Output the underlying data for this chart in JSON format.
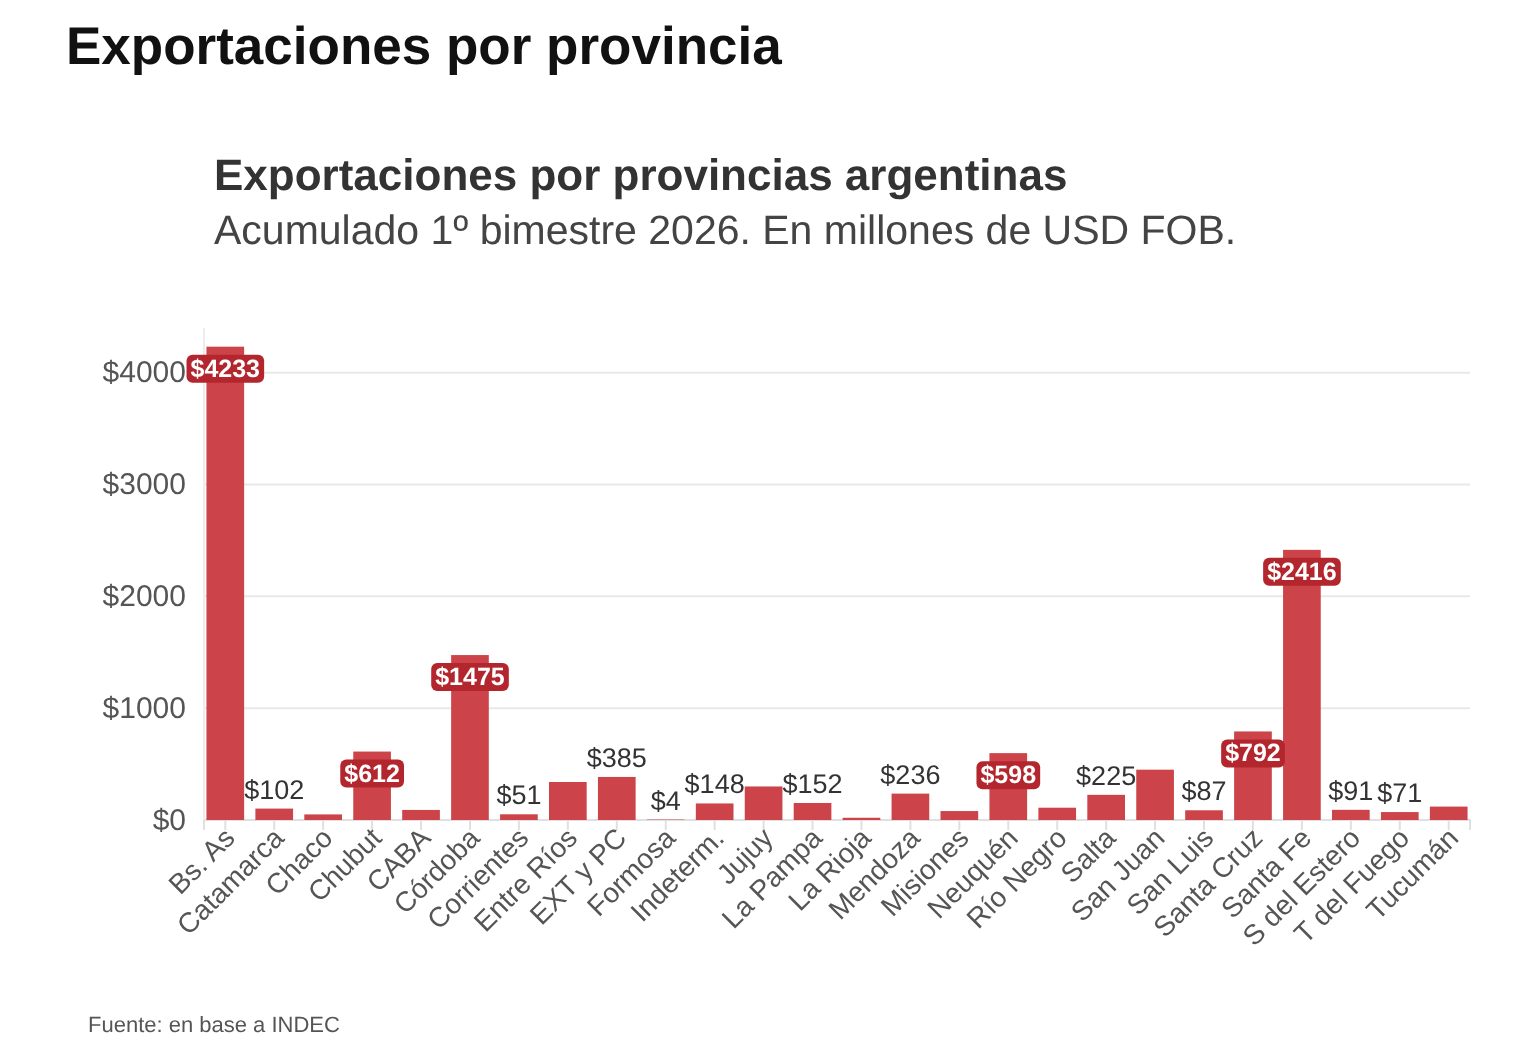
{
  "chart_data": {
    "type": "bar",
    "title": "Exportaciones por provincias argentinas",
    "subtitle": "Acumulado 1º bimestre 2026. En millones de USD FOB.",
    "annotations": [
      "Exportaciones por provincia",
      "Fuente: en base a INDEC"
    ],
    "categories": [
      "Bs. As",
      "Catamarca",
      "Chaco",
      "Chubut",
      "CABA",
      "Córdoba",
      "Corrientes",
      "Entre Ríos",
      "EXT y PC",
      "Formosa",
      "Indeterm.",
      "Jujuy",
      "La Pampa",
      "La Rioja",
      "Mendoza",
      "Misiones",
      "Neuquén",
      "Río Negro",
      "Salta",
      "San Juan",
      "San Luis",
      "Santa Cruz",
      "Santa Fe",
      "S del Estero",
      "T del Fuego",
      "Tucumán"
    ],
    "values": [
      4233,
      102,
      50,
      612,
      90,
      1475,
      51,
      340,
      385,
      4,
      148,
      300,
      152,
      20,
      236,
      80,
      598,
      110,
      225,
      450,
      87,
      792,
      2416,
      91,
      71,
      120
    ],
    "value_labels": [
      "$4233",
      "$102",
      null,
      "$612",
      null,
      "$1475",
      "$51",
      null,
      "$385",
      "$4",
      "$148",
      null,
      "$152",
      null,
      "$236",
      null,
      "$598",
      null,
      "$225",
      null,
      "$87",
      "$792",
      "$2416",
      "$91",
      "$71",
      null
    ],
    "color": "#cc4449",
    "ylim": [
      0,
      4400
    ],
    "yticks": [
      {
        "value": 0,
        "label": "$0"
      },
      {
        "value": 1000,
        "label": "$1000"
      },
      {
        "value": 2000,
        "label": "$2000"
      },
      {
        "value": 3000,
        "label": "$3000"
      },
      {
        "value": 4000,
        "label": "$4000"
      }
    ],
    "grid": "y"
  }
}
